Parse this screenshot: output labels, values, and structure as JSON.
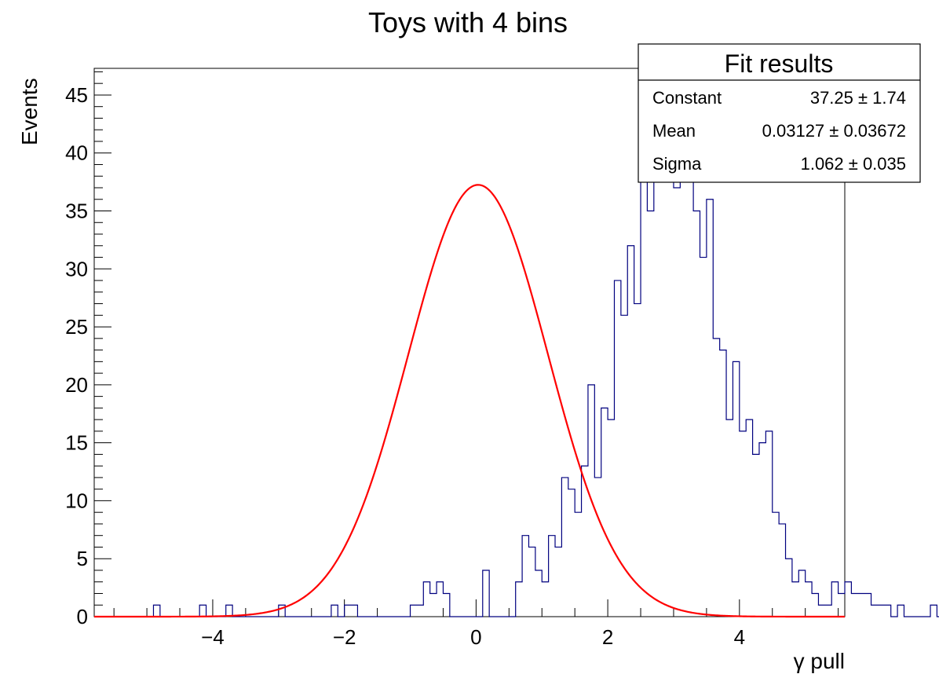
{
  "chart_data": {
    "type": "bar",
    "title": "Toys with 4 bins",
    "xlabel": "γ pull",
    "ylabel": "Events",
    "xlim": [
      -5.8,
      5.6
    ],
    "ylim": [
      0,
      47.3
    ],
    "x_ticks": [
      "−4",
      "−2",
      "0",
      "2",
      "4"
    ],
    "x_tick_values": [
      -4,
      -2,
      0,
      2,
      4
    ],
    "y_ticks": [
      "0",
      "5",
      "10",
      "15",
      "20",
      "25",
      "30",
      "35",
      "40",
      "45"
    ],
    "y_tick_values": [
      0,
      5,
      10,
      15,
      20,
      25,
      30,
      35,
      40,
      45
    ],
    "series": [
      {
        "kind": "histogram",
        "color": "#00007f",
        "bin_low": -5.8,
        "bin_width": 0.1,
        "counts": [
          0,
          0,
          0,
          0,
          0,
          0,
          0,
          0,
          0,
          1,
          0,
          0,
          0,
          0,
          0,
          0,
          1,
          0,
          0,
          0,
          1,
          0,
          0,
          0,
          0,
          0,
          0,
          0,
          1,
          0,
          0,
          0,
          0,
          0,
          0,
          0,
          1,
          0,
          1,
          1,
          0,
          0,
          0,
          0,
          0,
          0,
          0,
          0,
          1,
          1,
          3,
          2,
          3,
          2,
          0,
          0,
          0,
          0,
          0,
          4,
          0,
          0,
          0,
          0,
          3,
          7,
          6,
          4,
          3,
          7,
          6,
          12,
          11,
          9,
          13,
          20,
          12,
          18,
          17,
          29,
          26,
          32,
          27,
          43,
          35,
          44,
          43,
          44,
          37,
          45,
          38,
          35,
          31,
          36,
          24,
          23,
          17,
          22,
          16,
          17,
          14,
          15,
          16,
          9,
          8,
          5,
          3,
          4,
          3,
          2,
          1,
          1,
          3,
          2,
          3,
          2,
          2,
          2,
          1,
          1,
          1,
          0,
          1,
          0,
          0,
          0,
          0,
          1,
          0,
          0,
          0,
          0,
          0,
          0,
          0,
          0,
          0,
          0,
          0,
          0
        ]
      },
      {
        "kind": "gaussian-fit",
        "color": "#ff0000",
        "constant": 37.25,
        "mean": 0.03127,
        "sigma": 1.062
      }
    ],
    "stats_box": {
      "title": "Fit results",
      "rows": [
        {
          "label": "Constant",
          "value": "37.25 ± 1.74"
        },
        {
          "label": "Mean",
          "value": "0.03127 ± 0.03672"
        },
        {
          "label": "Sigma",
          "value": "1.062 ± 0.035"
        }
      ]
    }
  }
}
